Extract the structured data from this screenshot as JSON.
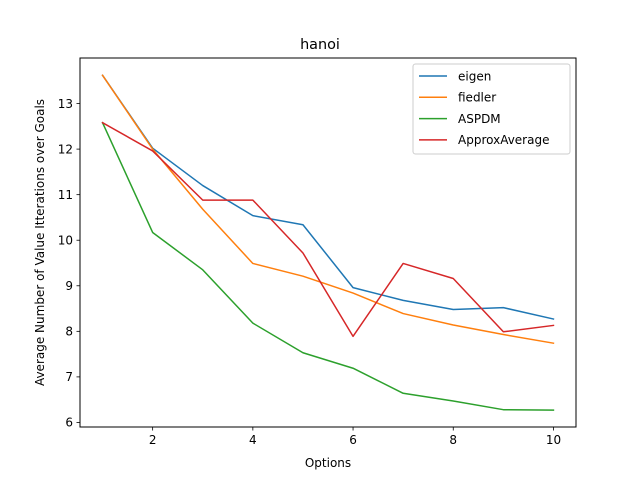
{
  "chart_data": {
    "type": "line",
    "title": "hanoi",
    "xlabel": "Options",
    "ylabel": "Average Number of Value Itterations over Goals",
    "xlim": [
      0.55,
      10.45
    ],
    "ylim": [
      5.9,
      14.0
    ],
    "xticks": [
      2,
      4,
      6,
      8,
      10
    ],
    "yticks": [
      6,
      7,
      8,
      9,
      10,
      11,
      12,
      13
    ],
    "grid": false,
    "legend_position": "top-right",
    "x": [
      1,
      2,
      3,
      4,
      5,
      6,
      7,
      8,
      9,
      10
    ],
    "series": [
      {
        "name": "eigen",
        "color": "#1f77b4",
        "values": [
          13.62,
          12.02,
          11.2,
          10.54,
          10.34,
          8.96,
          8.68,
          8.48,
          8.52,
          8.27
        ]
      },
      {
        "name": "fiedler",
        "color": "#ff7f0e",
        "values": [
          13.62,
          12.0,
          10.68,
          9.49,
          9.21,
          8.84,
          8.39,
          8.14,
          7.93,
          7.74
        ]
      },
      {
        "name": "ASPDM",
        "color": "#2ca02c",
        "values": [
          12.58,
          10.17,
          9.35,
          8.18,
          7.53,
          7.19,
          6.64,
          6.47,
          6.28,
          6.27
        ]
      },
      {
        "name": "ApproxAverage",
        "color": "#d62728",
        "values": [
          12.58,
          11.96,
          10.88,
          10.88,
          9.72,
          7.89,
          9.49,
          9.16,
          7.99,
          8.13
        ]
      }
    ]
  }
}
